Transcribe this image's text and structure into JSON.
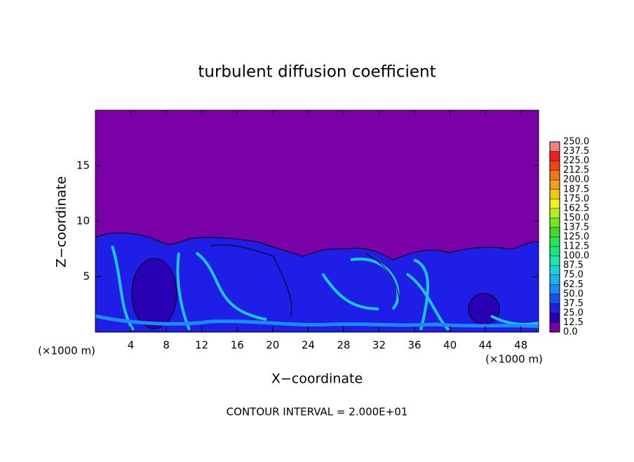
{
  "chart_data": {
    "type": "contour",
    "title": "turbulent diffusion coefficient",
    "xlabel": "X−coordinate",
    "ylabel": "Z−coordinate",
    "x_unit_left": "(×1000 m)",
    "x_unit_right": "(×1000 m)",
    "footer": "CONTOUR INTERVAL = 2.000E+01",
    "xlim": [
      0,
      50
    ],
    "ylim": [
      0,
      20
    ],
    "xticks": [
      4,
      8,
      12,
      16,
      20,
      24,
      28,
      32,
      36,
      40,
      44,
      48
    ],
    "yticks": [
      5,
      10,
      15
    ],
    "colorbar_levels": [
      {
        "value": 0,
        "label": "0.0"
      },
      {
        "value": 12.5,
        "label": "12.5"
      },
      {
        "value": 25,
        "label": "25.0"
      },
      {
        "value": 37.5,
        "label": "37.5"
      },
      {
        "value": 50,
        "label": "50.0"
      },
      {
        "value": 62.5,
        "label": "62.5"
      },
      {
        "value": 75,
        "label": "75.0"
      },
      {
        "value": 87.5,
        "label": "87.5"
      },
      {
        "value": 100,
        "label": "100.0"
      },
      {
        "value": 112.5,
        "label": "112.5"
      },
      {
        "value": 125,
        "label": "125.0"
      },
      {
        "value": 137.5,
        "label": "137.5"
      },
      {
        "value": 150,
        "label": "150.0"
      },
      {
        "value": 162.5,
        "label": "162.5"
      },
      {
        "value": 175,
        "label": "175.0"
      },
      {
        "value": 187.5,
        "label": "187.5"
      },
      {
        "value": 200,
        "label": "200.0"
      },
      {
        "value": 212.5,
        "label": "212.5"
      },
      {
        "value": 225,
        "label": "225.0"
      },
      {
        "value": 237.5,
        "label": "237.5"
      },
      {
        "value": 250,
        "label": "250.0"
      }
    ],
    "colorbar_colors": [
      "#7a00a8",
      "#2a00b4",
      "#1e1ee6",
      "#1a50f0",
      "#1a8cf5",
      "#1ab4f0",
      "#19d2dc",
      "#19e6b4",
      "#19e678",
      "#28e650",
      "#3cdc28",
      "#78e61e",
      "#b4f01e",
      "#f0f01e",
      "#f0c814",
      "#f0a014",
      "#f07814",
      "#f04614",
      "#f01e1e",
      "#f08080"
    ]
  }
}
